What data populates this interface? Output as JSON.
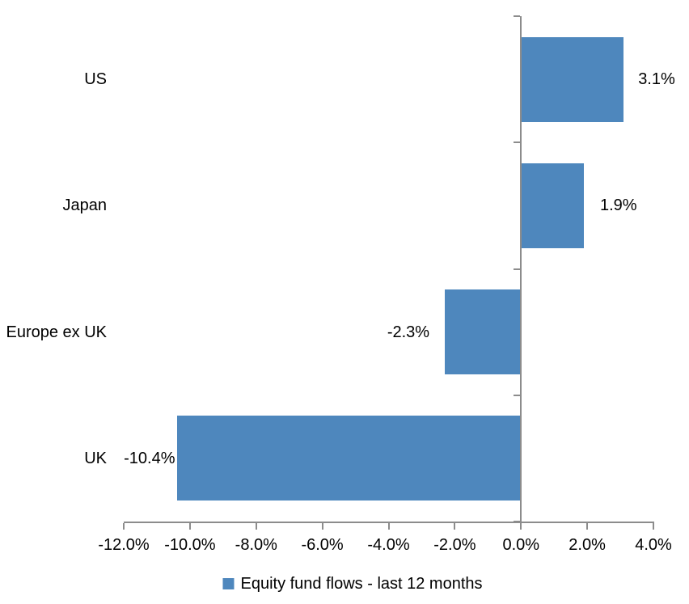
{
  "chart_data": {
    "type": "bar",
    "orientation": "horizontal",
    "title": "",
    "categories": [
      "US",
      "Japan",
      "Europe ex UK",
      "UK"
    ],
    "values": [
      3.1,
      1.9,
      -2.3,
      -10.4
    ],
    "value_labels": [
      "3.1%",
      "1.9%",
      "-2.3%",
      "-10.4%"
    ],
    "x_ticks": [
      -12,
      -10,
      -8,
      -6,
      -4,
      -2,
      0,
      2,
      4
    ],
    "x_tick_labels": [
      "-12.0%",
      "-10.0%",
      "-8.0%",
      "-6.0%",
      "-4.0%",
      "-2.0%",
      "0.0%",
      "2.0%",
      "4.0%"
    ],
    "xlim": [
      -12,
      4
    ],
    "grid": false,
    "legend_position": "bottom",
    "legend_label": "Equity fund flows - last 12 months",
    "bar_color": "#4e87bd",
    "axis_color": "#8c8c8c",
    "text_color": "#000000",
    "layout_hints": {
      "value_label_gaps": [
        18,
        20,
        19,
        2
      ]
    }
  }
}
